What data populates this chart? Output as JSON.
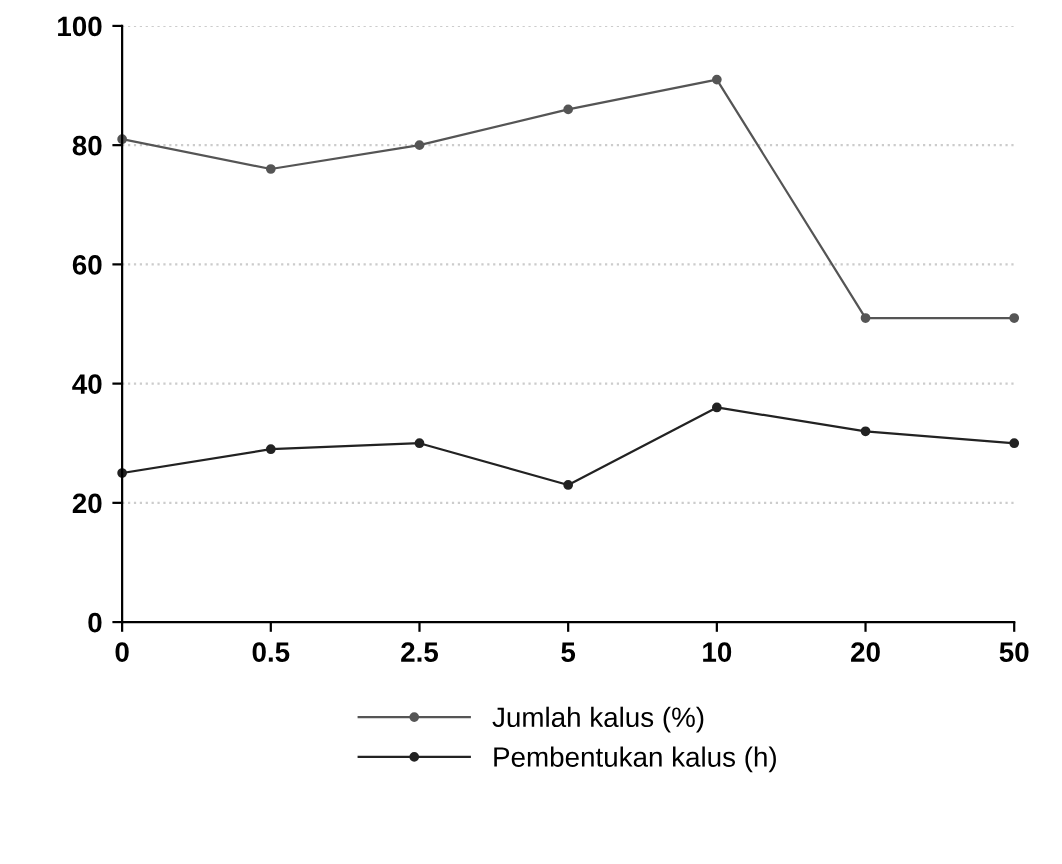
{
  "chart_data": {
    "type": "line",
    "categories": [
      "0",
      "0.5",
      "2.5",
      "5",
      "10",
      "20",
      "50"
    ],
    "series": [
      {
        "name": "Jumlah kalus (%)",
        "color": "#555555",
        "values": [
          81,
          76,
          80,
          86,
          91,
          51,
          51
        ]
      },
      {
        "name": "Pembentukan kalus (h)",
        "color": "#222222",
        "values": [
          25,
          29,
          30,
          23,
          36,
          32,
          30
        ]
      }
    ],
    "ylim": [
      0,
      100
    ],
    "yticks": [
      0,
      20,
      40,
      60,
      80,
      100
    ],
    "grid": "y",
    "legend": "bottom",
    "marker": "circle",
    "line_style": "solid"
  }
}
